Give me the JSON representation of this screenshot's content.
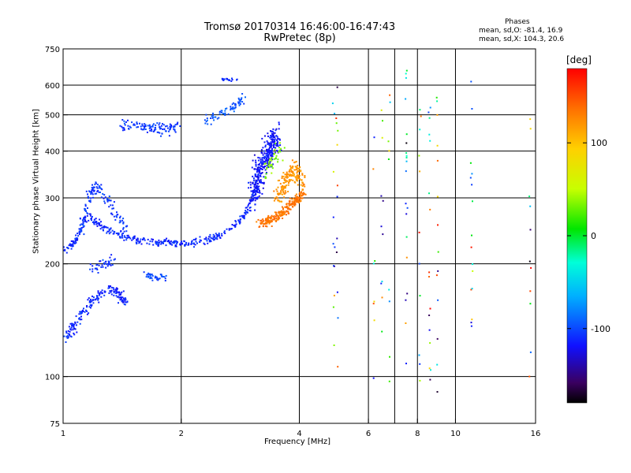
{
  "header": {
    "title_line1": "Tromsø 20170314 16:46:00-16:47:43",
    "title_line2": "RwPretec (8p)",
    "stats_heading": "Phases",
    "stats_o": "mean, sd,O: -81.4, 16.9",
    "stats_x": "mean, sd,X: 104.3, 20.6"
  },
  "chart_data": {
    "type": "scatter",
    "xlabel": "Frequency [MHz]",
    "ylabel": "Stationary phase Virtual Height [km]",
    "xscale": "log",
    "yscale": "log",
    "xlim": [
      1,
      16
    ],
    "ylim": [
      75,
      750
    ],
    "xticks": [
      {
        "v": 1,
        "label": "1"
      },
      {
        "v": 2,
        "label": "2"
      },
      {
        "v": 4,
        "label": "4"
      },
      {
        "v": 6,
        "label": "6"
      },
      {
        "v": 8,
        "label": "8"
      },
      {
        "v": 10,
        "label": "10"
      },
      {
        "v": 16,
        "label": "16"
      }
    ],
    "xgrid": [
      2,
      4,
      6,
      7,
      8,
      10
    ],
    "yticks": [
      {
        "v": 75,
        "label": "75"
      },
      {
        "v": 100,
        "label": "100"
      },
      {
        "v": 200,
        "label": "200"
      },
      {
        "v": 300,
        "label": "300"
      },
      {
        "v": 400,
        "label": "400"
      },
      {
        "v": 500,
        "label": "500"
      },
      {
        "v": 600,
        "label": "600"
      },
      {
        "v": 750,
        "label": "750"
      }
    ],
    "ygrid": [
      100,
      200,
      300,
      400,
      500,
      600
    ],
    "grid": true,
    "colorbar": {
      "label": "[deg]",
      "range": [
        -180,
        180
      ],
      "ticks": [
        {
          "v": 100,
          "label": "100"
        },
        {
          "v": 0,
          "label": "0"
        },
        {
          "v": -100,
          "label": "-100"
        }
      ]
    },
    "traces": [
      {
        "f": [
          1.0,
          1.08,
          1.15,
          1.25,
          1.4,
          1.55,
          1.7,
          1.85,
          2.0,
          2.2,
          2.45,
          2.7,
          2.9,
          3.05,
          3.15
        ],
        "h": [
          215,
          232,
          270,
          252,
          238,
          230,
          228,
          228,
          226,
          228,
          235,
          248,
          268,
          300,
          340
        ],
        "n": 420,
        "spread": 0.035,
        "phase": -110
      },
      {
        "f": [
          1.1,
          1.16,
          1.22,
          1.3,
          1.37,
          1.45
        ],
        "h": [
          240,
          300,
          325,
          300,
          270,
          250
        ],
        "n": 120,
        "spread": 0.05,
        "phase": -105
      },
      {
        "f": [
          1.02,
          1.06,
          1.12,
          1.2,
          1.28,
          1.38,
          1.45
        ],
        "h": [
          128,
          135,
          148,
          162,
          170,
          168,
          158
        ],
        "n": 180,
        "spread": 0.05,
        "phase": -112
      },
      {
        "f": [
          1.15,
          1.25,
          1.35
        ],
        "h": [
          190,
          200,
          205
        ],
        "n": 40,
        "spread": 0.05,
        "phase": -108
      },
      {
        "f": [
          1.4,
          1.6,
          1.8,
          2.0
        ],
        "h": [
          470,
          465,
          455,
          470
        ],
        "n": 110,
        "spread": 0.05,
        "phase": -105
      },
      {
        "f": [
          1.62,
          1.72,
          1.82
        ],
        "h": [
          188,
          182,
          186
        ],
        "n": 40,
        "spread": 0.04,
        "phase": -100
      },
      {
        "f": [
          2.3,
          2.5,
          2.7,
          2.9
        ],
        "h": [
          480,
          500,
          520,
          560
        ],
        "n": 70,
        "spread": 0.04,
        "phase": -95
      },
      {
        "f": [
          2.5,
          2.65,
          2.8
        ],
        "h": [
          625,
          620,
          615
        ],
        "n": 20,
        "spread": 0.015,
        "phase": -110
      },
      {
        "f": [
          3.05,
          3.2,
          3.35,
          3.5
        ],
        "h": [
          300,
          360,
          400,
          440
        ],
        "n": 340,
        "spread": 0.11,
        "phase": -118
      },
      {
        "f": [
          3.15,
          3.4,
          3.65,
          3.9,
          4.1
        ],
        "h": [
          258,
          262,
          275,
          295,
          310
        ],
        "n": 240,
        "spread": 0.045,
        "phase": 135
      },
      {
        "f": [
          3.5,
          3.7,
          3.9,
          4.1
        ],
        "h": [
          300,
          330,
          360,
          330
        ],
        "n": 170,
        "spread": 0.08,
        "phase": 120
      },
      {
        "f": [
          3.3,
          3.45,
          3.6
        ],
        "h": [
          350,
          380,
          410
        ],
        "n": 40,
        "spread": 0.07,
        "phase": 35
      }
    ],
    "noise_seed": 17,
    "noise_count": 140
  }
}
